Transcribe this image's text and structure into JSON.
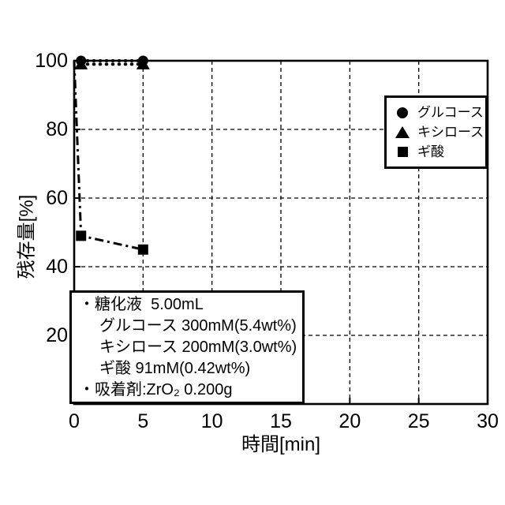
{
  "figure": {
    "background_color": "#ffffff",
    "ink_color": "#000000"
  },
  "chart_data": {
    "type": "line",
    "title": "",
    "xlabel": "時間[min]",
    "ylabel": "残存量[%]",
    "xlim": [
      0,
      30
    ],
    "ylim": [
      0,
      100
    ],
    "xticks": [
      0,
      5,
      10,
      15,
      20,
      25,
      30
    ],
    "yticks": [
      20,
      40,
      60,
      80,
      100
    ],
    "grid": "dashed",
    "legend_position": "upper-right-inside",
    "series": [
      {
        "name": "グルコース",
        "marker": "circle",
        "line_style": "dotted",
        "x": [
          0.5,
          5
        ],
        "y": [
          100,
          100
        ],
        "marker_on_first_point": true
      },
      {
        "name": "キシロース",
        "marker": "triangle",
        "line_style": "dotted",
        "x": [
          0.5,
          5
        ],
        "y": [
          99,
          99
        ],
        "marker_on_first_point": true
      },
      {
        "name": "ギ酸",
        "marker": "square",
        "line_style": "dash-dot",
        "x": [
          0,
          0.5,
          5
        ],
        "y": [
          100,
          49,
          45
        ],
        "marker_on_first_point": false
      }
    ],
    "annotation_box": {
      "lines": [
        "・糖化液  5.00mL",
        "グルコース 300mM(5.4wt%)",
        "キシロース 200mM(3.0wt%)",
        "ギ酸 91mM(0.42wt%)",
        "・吸着剤:ZrO₂ 0.200g"
      ]
    }
  }
}
